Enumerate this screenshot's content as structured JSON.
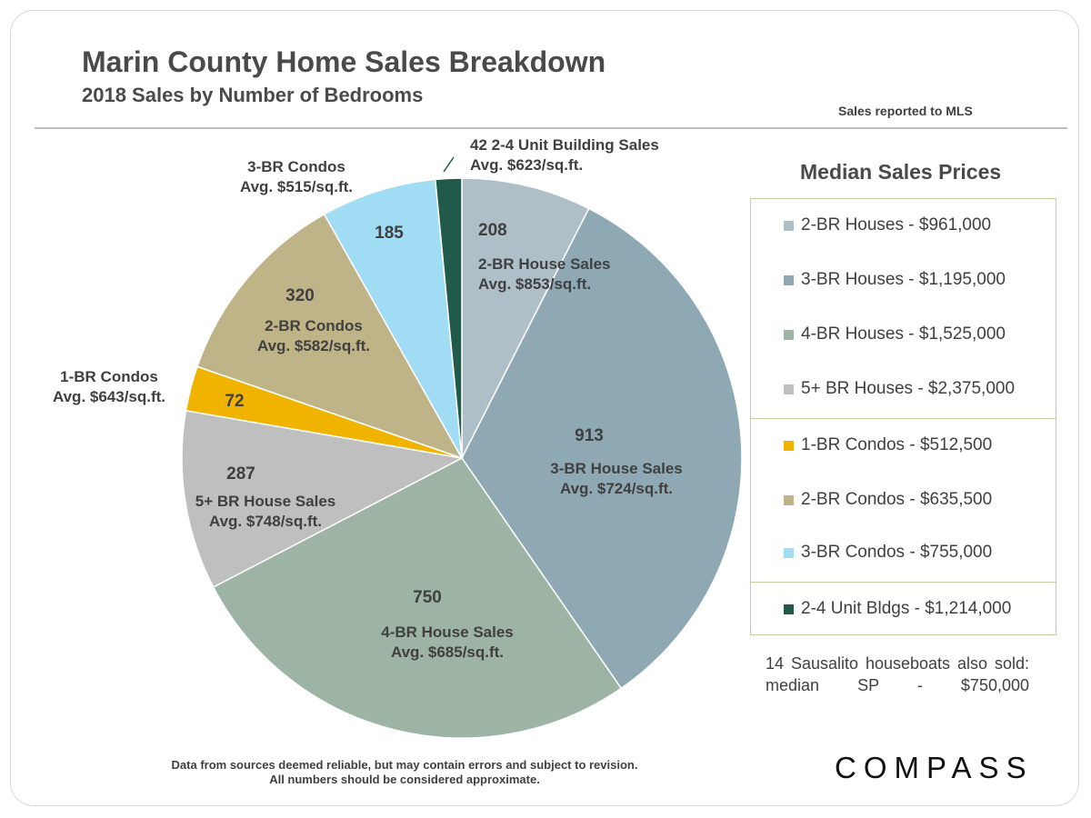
{
  "chart_data": {
    "type": "pie",
    "title": "Marin County Home Sales Breakdown",
    "subtitle": "2018 Sales by Number of Bedrooms",
    "categories": [
      "2-BR House Sales",
      "3-BR House Sales",
      "4-BR House Sales",
      "5+ BR House Sales",
      "1-BR Condos",
      "2-BR Condos",
      "3-BR Condos",
      "2-4 Unit Building Sales"
    ],
    "values": [
      208,
      913,
      750,
      287,
      72,
      320,
      185,
      42
    ],
    "colors": [
      "#afbfc8",
      "#8fa9b4",
      "#9db3a3",
      "#bfbfbf",
      "#f0b400",
      "#bfb487",
      "#a1dcf5",
      "#215a4b"
    ],
    "slice_labels": [
      {
        "value": "208",
        "lines": [
          "2-BR House Sales",
          "Avg. $853/sq.ft."
        ]
      },
      {
        "value": "913",
        "lines": [
          "3-BR House Sales",
          "Avg. $724/sq.ft."
        ]
      },
      {
        "value": "750",
        "lines": [
          "4-BR House Sales",
          "Avg. $685/sq.ft."
        ]
      },
      {
        "value": "287",
        "lines": [
          "5+ BR House Sales",
          "Avg. $748/sq.ft."
        ]
      },
      {
        "value": "72",
        "lines": [
          "1-BR Condos",
          "Avg. $643/sq.ft."
        ]
      },
      {
        "value": "320",
        "lines": [
          "2-BR Condos",
          "Avg. $582/sq.ft."
        ]
      },
      {
        "value": "185",
        "lines": [
          "3-BR Condos",
          "Avg. $515/sq.ft."
        ]
      },
      {
        "value": "",
        "lines": [
          "42 2-4 Unit Building Sales",
          "Avg. $623/sq.ft."
        ]
      }
    ],
    "legend_title": "Median Sales Prices",
    "legend_placement": "right",
    "legend": [
      {
        "label": "2-BR Houses - $961,000",
        "color": "#afbfc8"
      },
      {
        "label": "3-BR Houses - $1,195,000",
        "color": "#8fa9b4"
      },
      {
        "label": "4-BR Houses - $1,525,000",
        "color": "#9db3a3"
      },
      {
        "label": "5+ BR Houses - $2,375,000",
        "color": "#bfbfbf"
      },
      {
        "label": "1-BR Condos - $512,500",
        "color": "#f0b400"
      },
      {
        "label": "2-BR Condos - $635,500",
        "color": "#bfb487"
      },
      {
        "label": "3-BR Condos - $755,000",
        "color": "#a1dcf5"
      },
      {
        "label": "2-4 Unit Bldgs - $1,214,000",
        "color": "#215a4b"
      }
    ]
  },
  "header": {
    "title": "Marin County Home Sales Breakdown",
    "subtitle": "2018 Sales by Number of Bedrooms",
    "source_note": "Sales reported to MLS"
  },
  "notes": {
    "houseboats": "14 Sausalito houseboats also sold: median SP - $750,000",
    "footnote_line1": "Data from sources deemed reliable, but may contain errors and subject to revision.",
    "footnote_line2": "All numbers should be considered approximate."
  },
  "brand": {
    "logo_text": "COMPASS"
  }
}
